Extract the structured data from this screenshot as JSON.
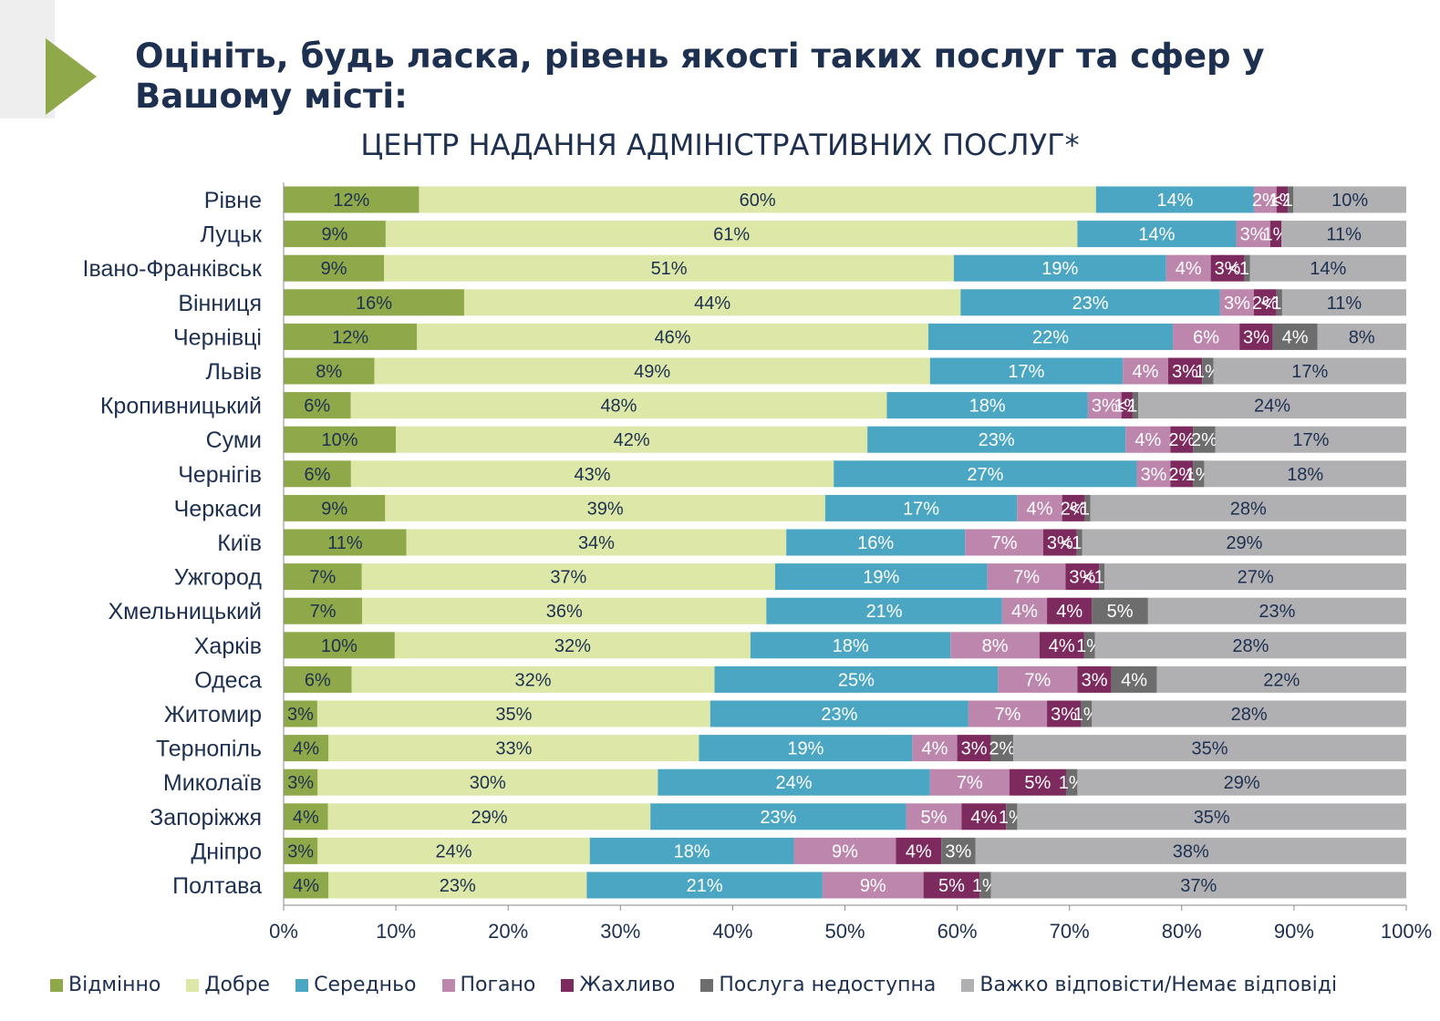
{
  "header": {
    "title": "Оцініть, будь ласка, рівень якості таких послуг та сфер у Вашому місті:"
  },
  "chart_data": {
    "type": "bar",
    "orientation": "horizontal",
    "stacked": true,
    "normalized": true,
    "title": "ЦЕНТР НАДАННЯ АДМІНІСТРАТИВНИХ ПОСЛУГ*",
    "xlim": [
      0,
      100
    ],
    "x_ticks": [
      "0%",
      "10%",
      "20%",
      "30%",
      "40%",
      "50%",
      "60%",
      "70%",
      "80%",
      "90%",
      "100%"
    ],
    "legend_position": "bottom",
    "categories": [
      "Рівне",
      "Луцьк",
      "Івано-Франківськ",
      "Вінниця",
      "Чернівці",
      "Львів",
      "Кропивницький",
      "Суми",
      "Чернігів",
      "Черкаси",
      "Київ",
      "Ужгород",
      "Хмельницький",
      "Харків",
      "Одеса",
      "Житомир",
      "Тернопіль",
      "Миколаїв",
      "Запоріжжя",
      "Дніпро",
      "Полтава"
    ],
    "series": [
      {
        "name": "Відмінно",
        "color": "#8fa84a",
        "values": [
          12,
          9,
          9,
          16,
          12,
          8,
          6,
          10,
          6,
          9,
          11,
          7,
          7,
          10,
          6,
          3,
          4,
          3,
          4,
          3,
          4
        ],
        "labels": [
          "12%",
          "9%",
          "9%",
          "16%",
          "12%",
          "8%",
          "6%",
          "10%",
          "6%",
          "9%",
          "11%",
          "7%",
          "7%",
          "10%",
          "6%",
          "3%",
          "4%",
          "3%",
          "4%",
          "3%",
          "4%"
        ]
      },
      {
        "name": "Добре",
        "color": "#dde8a8",
        "values": [
          60,
          61,
          51,
          44,
          46,
          49,
          48,
          42,
          43,
          39,
          34,
          37,
          36,
          32,
          32,
          35,
          33,
          30,
          29,
          24,
          23
        ],
        "labels": [
          "60%",
          "61%",
          "51%",
          "44%",
          "46%",
          "49%",
          "48%",
          "42%",
          "43%",
          "39%",
          "34%",
          "37%",
          "36%",
          "32%",
          "32%",
          "35%",
          "33%",
          "30%",
          "29%",
          "24%",
          "23%"
        ]
      },
      {
        "name": "Середньо",
        "color": "#4ba6c3",
        "values": [
          14,
          14,
          19,
          23,
          22,
          17,
          18,
          23,
          27,
          17,
          16,
          19,
          21,
          18,
          25,
          23,
          19,
          24,
          23,
          18,
          21
        ],
        "labels": [
          "14%",
          "14%",
          "19%",
          "23%",
          "22%",
          "17%",
          "18%",
          "23%",
          "27%",
          "17%",
          "16%",
          "19%",
          "21%",
          "18%",
          "25%",
          "23%",
          "19%",
          "24%",
          "23%",
          "18%",
          "21%"
        ]
      },
      {
        "name": "Погано",
        "color": "#bd87ad",
        "values": [
          2,
          3,
          4,
          3,
          6,
          4,
          3,
          4,
          3,
          4,
          7,
          7,
          4,
          8,
          7,
          7,
          4,
          7,
          5,
          9,
          9
        ],
        "labels": [
          "2%",
          "3%",
          "4%",
          "3%",
          "6%",
          "4%",
          "3%",
          "4%",
          "3%",
          "4%",
          "7%",
          "7%",
          "4%",
          "8%",
          "7%",
          "7%",
          "4%",
          "7%",
          "5%",
          "9%",
          "9%"
        ]
      },
      {
        "name": "Жахливо",
        "color": "#7d2a5e",
        "values": [
          1,
          1,
          3,
          2,
          3,
          3,
          1,
          2,
          2,
          2,
          3,
          3,
          4,
          4,
          3,
          3,
          3,
          5,
          4,
          4,
          5
        ],
        "labels": [
          "1%",
          "1%",
          "3%",
          "2%",
          "3%",
          "3%",
          "1%",
          "2%",
          "2%",
          "2%",
          "3%",
          "3%",
          "4%",
          "4%",
          "3%",
          "3%",
          "3%",
          "5%",
          "4%",
          "4%",
          "5%"
        ]
      },
      {
        "name": "Послуга недоступна",
        "color": "#6d6d6d",
        "values": [
          0.5,
          0,
          0.5,
          0.5,
          4,
          1,
          0.5,
          2,
          1,
          0.5,
          0.5,
          0.5,
          5,
          1,
          4,
          1,
          2,
          1,
          1,
          3,
          1
        ],
        "labels": [
          "<1%",
          "",
          "<1%",
          "<1%",
          "4%",
          "1%",
          "<1%",
          "2%",
          "1%",
          "<1%",
          "<1%",
          "<1%",
          "5%",
          "1%",
          "4%",
          "1%",
          "2%",
          "1%",
          "1%",
          "3%",
          "1%"
        ]
      },
      {
        "name": "Важко відповісти/Немає відповіді",
        "color": "#b0b0b2",
        "values": [
          10,
          11,
          14,
          11,
          8,
          17,
          24,
          17,
          18,
          28,
          29,
          27,
          23,
          28,
          22,
          28,
          35,
          29,
          35,
          38,
          37
        ],
        "labels": [
          "10%",
          "11%",
          "14%",
          "11%",
          "8%",
          "17%",
          "24%",
          "17%",
          "18%",
          "28%",
          "29%",
          "27%",
          "23%",
          "28%",
          "22%",
          "28%",
          "35%",
          "29%",
          "35%",
          "38%",
          "37%"
        ]
      }
    ]
  }
}
